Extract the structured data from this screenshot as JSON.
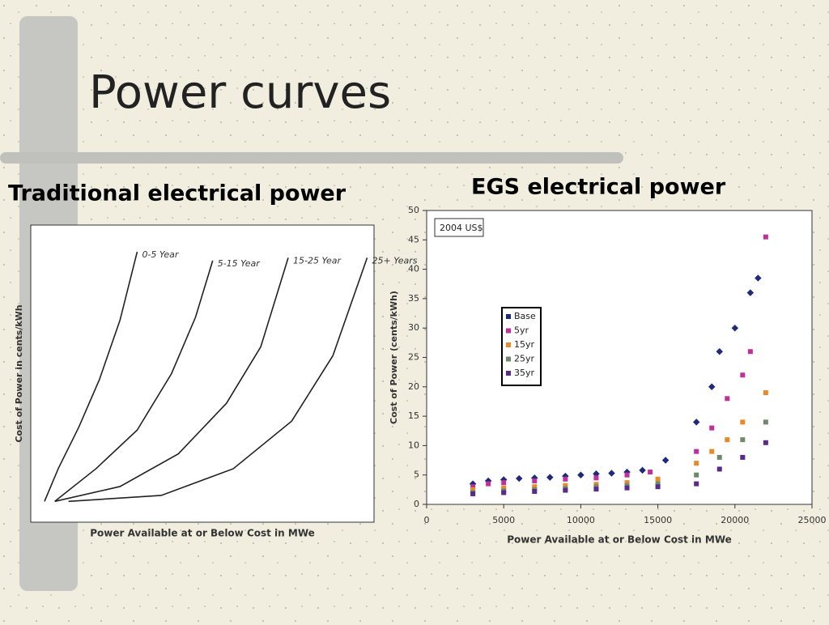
{
  "title": "Power curves",
  "chart_data": [
    {
      "type": "line",
      "title": "Traditional electrical power",
      "x_label": "Power Available at or Below Cost in MWe",
      "y_label": "Cost of Power in cents/kWh",
      "xlim": [
        0,
        100
      ],
      "ylim": [
        0,
        100
      ],
      "series": [
        {
          "name": "0-5 Year",
          "color": "#222222",
          "x": [
            4,
            8,
            14,
            20,
            26,
            31
          ],
          "values": [
            7,
            18,
            32,
            48,
            68,
            91
          ]
        },
        {
          "name": "5-15 Year",
          "color": "#222222",
          "x": [
            7,
            19,
            31,
            41,
            48,
            53
          ],
          "values": [
            7,
            18,
            31,
            50,
            69,
            88
          ]
        },
        {
          "name": "15-25 Year",
          "color": "#222222",
          "x": [
            7,
            26,
            43,
            57,
            67,
            75
          ],
          "values": [
            7,
            12,
            23,
            40,
            59,
            89
          ]
        },
        {
          "name": "25+ Years",
          "color": "#222222",
          "x": [
            11,
            38,
            59,
            76,
            88,
            98
          ],
          "values": [
            7,
            9,
            18,
            34,
            56,
            89
          ]
        }
      ]
    },
    {
      "type": "scatter",
      "title": "EGS electrical power",
      "annotation": "2004 US$",
      "x_label": "Power Available at or Below Cost in MWe",
      "y_label": "Cost of Power (cents/kWh)",
      "xlim": [
        0,
        25000
      ],
      "ylim": [
        0,
        50
      ],
      "xticks": [
        0,
        5000,
        10000,
        15000,
        20000,
        25000
      ],
      "yticks": [
        0,
        5,
        10,
        15,
        20,
        25,
        30,
        35,
        40,
        45,
        50
      ],
      "legend": "upper left",
      "series": [
        {
          "name": "Base",
          "color": "#1f2a7a",
          "x": [
            3000,
            4000,
            5000,
            6000,
            7000,
            8000,
            9000,
            10000,
            11000,
            12000,
            13000,
            14000,
            15500,
            17500,
            18500,
            19000,
            20000,
            21000,
            21500
          ],
          "values": [
            3.5,
            4,
            4.2,
            4.4,
            4.5,
            4.6,
            4.8,
            5,
            5.2,
            5.3,
            5.5,
            5.8,
            7.5,
            14,
            20,
            26,
            30,
            36,
            38.5
          ]
        },
        {
          "name": "5yr",
          "color": "#c0309a",
          "x": [
            3000,
            4000,
            5000,
            7000,
            9000,
            11000,
            13000,
            14500,
            17500,
            18500,
            19500,
            20500,
            21000,
            22000
          ],
          "values": [
            3,
            3.5,
            3.7,
            4,
            4.3,
            4.5,
            5,
            5.5,
            9,
            13,
            18,
            22,
            26,
            45.5
          ]
        },
        {
          "name": "15yr",
          "color": "#e8892a",
          "x": [
            3000,
            5000,
            7000,
            9000,
            11000,
            13000,
            15000,
            17500,
            18500,
            19500,
            20500,
            22000
          ],
          "values": [
            2.5,
            2.8,
            3,
            3.2,
            3.4,
            3.7,
            4.3,
            7,
            9,
            11,
            14,
            19
          ]
        },
        {
          "name": "25yr",
          "color": "#6f8a6a",
          "x": [
            3000,
            5000,
            7000,
            9000,
            11000,
            13000,
            15000,
            17500,
            19000,
            20500,
            22000
          ],
          "values": [
            2,
            2.3,
            2.5,
            2.7,
            3,
            3.2,
            3.5,
            5,
            8,
            11,
            14
          ]
        },
        {
          "name": "35yr",
          "color": "#5a2a8a",
          "x": [
            3000,
            5000,
            7000,
            9000,
            11000,
            13000,
            15000,
            17500,
            19000,
            20500,
            22000
          ],
          "values": [
            1.8,
            2,
            2.2,
            2.4,
            2.6,
            2.8,
            3,
            3.5,
            6,
            8,
            10.5
          ]
        }
      ]
    }
  ]
}
